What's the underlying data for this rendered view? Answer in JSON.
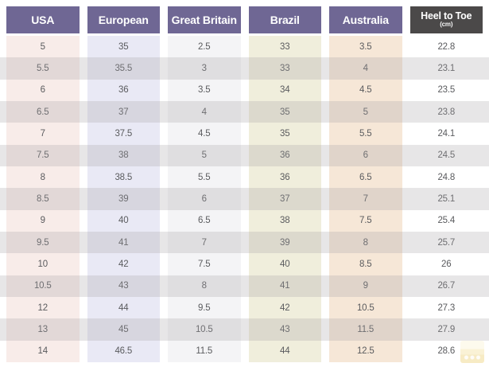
{
  "colors": {
    "page_bg": "#FFFFFF",
    "header_purple": "#6F6794",
    "header_dark": "#4B4949",
    "header_text": "#FFFFFF",
    "cell_text": "#5A5B5E",
    "stripe_overlay": "rgba(168,162,168,0.27)",
    "col_usa_bg": "#F8ECE9",
    "col_european_bg": "#E9E9F5",
    "col_great_britain_bg": "#F4F4F6",
    "col_brazil_bg": "#F0EEDC",
    "col_australia_bg": "#F6E7D7",
    "col_heel_to_toe_bg": "#FFFFFF"
  },
  "table": {
    "columns": [
      {
        "key": "usa",
        "label": "USA",
        "header_bg": "#6F6794",
        "cell_bg": "#F8ECE9"
      },
      {
        "key": "european",
        "label": "European",
        "header_bg": "#6F6794",
        "cell_bg": "#E9E9F5"
      },
      {
        "key": "great-britain",
        "label": "Great Britain",
        "header_bg": "#6F6794",
        "cell_bg": "#F4F4F6"
      },
      {
        "key": "brazil",
        "label": "Brazil",
        "header_bg": "#6F6794",
        "cell_bg": "#F0EEDC"
      },
      {
        "key": "australia",
        "label": "Australia",
        "header_bg": "#6F6794",
        "cell_bg": "#F6E7D7"
      },
      {
        "key": "heel-to-toe",
        "label": "Heel to Toe",
        "sublabel": "(cm)",
        "header_bg": "#4B4949",
        "cell_bg": "#FFFFFF"
      }
    ],
    "rows": [
      [
        "5",
        "35",
        "2.5",
        "33",
        "3.5",
        "22.8"
      ],
      [
        "5.5",
        "35.5",
        "3",
        "33",
        "4",
        "23.1"
      ],
      [
        "6",
        "36",
        "3.5",
        "34",
        "4.5",
        "23.5"
      ],
      [
        "6.5",
        "37",
        "4",
        "35",
        "5",
        "23.8"
      ],
      [
        "7",
        "37.5",
        "4.5",
        "35",
        "5.5",
        "24.1"
      ],
      [
        "7.5",
        "38",
        "5",
        "36",
        "6",
        "24.5"
      ],
      [
        "8",
        "38.5",
        "5.5",
        "36",
        "6.5",
        "24.8"
      ],
      [
        "8.5",
        "39",
        "6",
        "37",
        "7",
        "25.1"
      ],
      [
        "9",
        "40",
        "6.5",
        "38",
        "7.5",
        "25.4"
      ],
      [
        "9.5",
        "41",
        "7",
        "39",
        "8",
        "25.7"
      ],
      [
        "10",
        "42",
        "7.5",
        "40",
        "8.5",
        "26"
      ],
      [
        "10.5",
        "43",
        "8",
        "41",
        "9",
        "26.7"
      ],
      [
        "12",
        "44",
        "9.5",
        "42",
        "10.5",
        "27.3"
      ],
      [
        "13",
        "45",
        "10.5",
        "43",
        "11.5",
        "27.9"
      ],
      [
        "14",
        "46.5",
        "11.5",
        "44",
        "12.5",
        "28.6"
      ]
    ]
  },
  "chart_data": {
    "type": "table",
    "title": "Shoe size conversion chart",
    "columns": [
      "USA",
      "European",
      "Great Britain",
      "Brazil",
      "Australia",
      "Heel to Toe (cm)"
    ],
    "rows": [
      [
        "5",
        "35",
        "2.5",
        "33",
        "3.5",
        "22.8"
      ],
      [
        "5.5",
        "35.5",
        "3",
        "33",
        "4",
        "23.1"
      ],
      [
        "6",
        "36",
        "3.5",
        "34",
        "4.5",
        "23.5"
      ],
      [
        "6.5",
        "37",
        "4",
        "35",
        "5",
        "23.8"
      ],
      [
        "7",
        "37.5",
        "4.5",
        "35",
        "5.5",
        "24.1"
      ],
      [
        "7.5",
        "38",
        "5",
        "36",
        "6",
        "24.5"
      ],
      [
        "8",
        "38.5",
        "5.5",
        "36",
        "6.5",
        "24.8"
      ],
      [
        "8.5",
        "39",
        "6",
        "37",
        "7",
        "25.1"
      ],
      [
        "9",
        "40",
        "6.5",
        "38",
        "7.5",
        "25.4"
      ],
      [
        "9.5",
        "41",
        "7",
        "39",
        "8",
        "25.7"
      ],
      [
        "10",
        "42",
        "7.5",
        "40",
        "8.5",
        "26"
      ],
      [
        "10.5",
        "43",
        "8",
        "41",
        "9",
        "26.7"
      ],
      [
        "12",
        "44",
        "9.5",
        "42",
        "10.5",
        "27.3"
      ],
      [
        "13",
        "45",
        "10.5",
        "43",
        "11.5",
        "27.9"
      ],
      [
        "14",
        "46.5",
        "11.5",
        "44",
        "12.5",
        "28.6"
      ]
    ],
    "layout": {
      "zebra_striping": true,
      "striped_row_indices": [
        1,
        3,
        5,
        7,
        9,
        11,
        13
      ],
      "legend": "none",
      "grid": "column blocks with white gaps"
    }
  }
}
